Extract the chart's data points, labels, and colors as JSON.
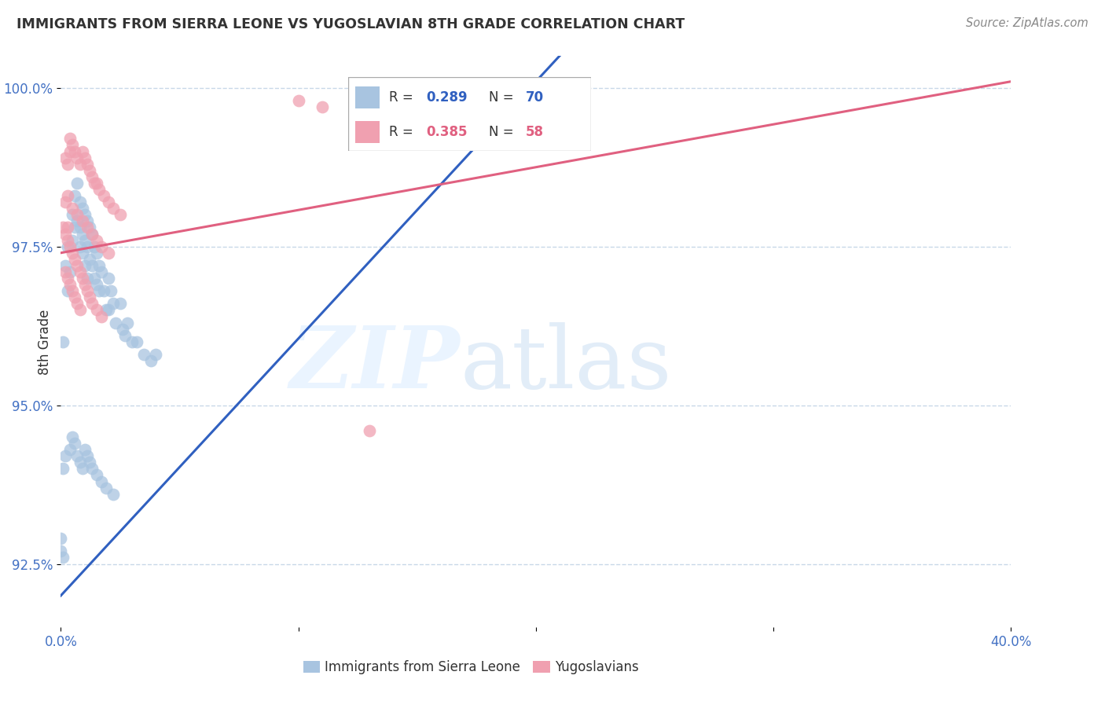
{
  "title": "IMMIGRANTS FROM SIERRA LEONE VS YUGOSLAVIAN 8TH GRADE CORRELATION CHART",
  "source": "Source: ZipAtlas.com",
  "ylabel": "8th Grade",
  "xlim": [
    0.0,
    0.4
  ],
  "ylim": [
    0.915,
    1.005
  ],
  "yticks": [
    0.925,
    0.95,
    0.975,
    1.0
  ],
  "ytick_labels": [
    "92.5%",
    "95.0%",
    "97.5%",
    "100.0%"
  ],
  "xticks": [
    0.0,
    0.1,
    0.2,
    0.3,
    0.4
  ],
  "xtick_labels": [
    "0.0%",
    "",
    "",
    "",
    "40.0%"
  ],
  "blue_R": 0.289,
  "blue_N": 70,
  "pink_R": 0.385,
  "pink_N": 58,
  "blue_color": "#a8c4e0",
  "pink_color": "#f0a0b0",
  "blue_line_color": "#3060c0",
  "pink_line_color": "#e06080",
  "background_color": "#ffffff",
  "grid_color": "#c8d8e8",
  "blue_line": [
    0.0,
    0.92,
    0.4,
    1.082
  ],
  "pink_line": [
    0.0,
    0.974,
    0.4,
    1.001
  ],
  "blue_scatter_x": [
    0.001,
    0.002,
    0.003,
    0.003,
    0.004,
    0.005,
    0.005,
    0.006,
    0.006,
    0.007,
    0.007,
    0.008,
    0.008,
    0.008,
    0.009,
    0.009,
    0.009,
    0.01,
    0.01,
    0.01,
    0.011,
    0.011,
    0.011,
    0.012,
    0.012,
    0.013,
    0.013,
    0.014,
    0.014,
    0.015,
    0.015,
    0.016,
    0.016,
    0.017,
    0.018,
    0.019,
    0.02,
    0.02,
    0.021,
    0.022,
    0.023,
    0.025,
    0.026,
    0.027,
    0.028,
    0.03,
    0.032,
    0.035,
    0.038,
    0.04,
    0.001,
    0.002,
    0.004,
    0.005,
    0.006,
    0.007,
    0.008,
    0.009,
    0.01,
    0.011,
    0.012,
    0.013,
    0.015,
    0.017,
    0.019,
    0.022,
    0.0,
    0.0,
    0.001,
    0.13
  ],
  "blue_scatter_y": [
    0.96,
    0.972,
    0.968,
    0.975,
    0.971,
    0.976,
    0.98,
    0.983,
    0.978,
    0.985,
    0.979,
    0.982,
    0.978,
    0.975,
    0.981,
    0.977,
    0.974,
    0.98,
    0.976,
    0.972,
    0.979,
    0.975,
    0.97,
    0.978,
    0.973,
    0.977,
    0.972,
    0.975,
    0.97,
    0.974,
    0.969,
    0.972,
    0.968,
    0.971,
    0.968,
    0.965,
    0.97,
    0.965,
    0.968,
    0.966,
    0.963,
    0.966,
    0.962,
    0.961,
    0.963,
    0.96,
    0.96,
    0.958,
    0.957,
    0.958,
    0.94,
    0.942,
    0.943,
    0.945,
    0.944,
    0.942,
    0.941,
    0.94,
    0.943,
    0.942,
    0.941,
    0.94,
    0.939,
    0.938,
    0.937,
    0.936,
    0.929,
    0.927,
    0.926,
    0.999
  ],
  "pink_scatter_x": [
    0.002,
    0.003,
    0.004,
    0.004,
    0.005,
    0.006,
    0.007,
    0.008,
    0.009,
    0.01,
    0.011,
    0.012,
    0.013,
    0.014,
    0.015,
    0.016,
    0.018,
    0.02,
    0.022,
    0.025,
    0.002,
    0.003,
    0.005,
    0.007,
    0.009,
    0.011,
    0.013,
    0.015,
    0.017,
    0.02,
    0.001,
    0.002,
    0.003,
    0.003,
    0.004,
    0.005,
    0.006,
    0.007,
    0.008,
    0.009,
    0.01,
    0.011,
    0.012,
    0.013,
    0.015,
    0.017,
    0.1,
    0.11,
    0.15,
    0.2,
    0.002,
    0.003,
    0.004,
    0.005,
    0.006,
    0.007,
    0.008,
    0.13
  ],
  "pink_scatter_y": [
    0.989,
    0.988,
    0.99,
    0.992,
    0.991,
    0.99,
    0.989,
    0.988,
    0.99,
    0.989,
    0.988,
    0.987,
    0.986,
    0.985,
    0.985,
    0.984,
    0.983,
    0.982,
    0.981,
    0.98,
    0.982,
    0.983,
    0.981,
    0.98,
    0.979,
    0.978,
    0.977,
    0.976,
    0.975,
    0.974,
    0.978,
    0.977,
    0.976,
    0.978,
    0.975,
    0.974,
    0.973,
    0.972,
    0.971,
    0.97,
    0.969,
    0.968,
    0.967,
    0.966,
    0.965,
    0.964,
    0.998,
    0.997,
    1.0,
    0.999,
    0.971,
    0.97,
    0.969,
    0.968,
    0.967,
    0.966,
    0.965,
    0.946
  ]
}
